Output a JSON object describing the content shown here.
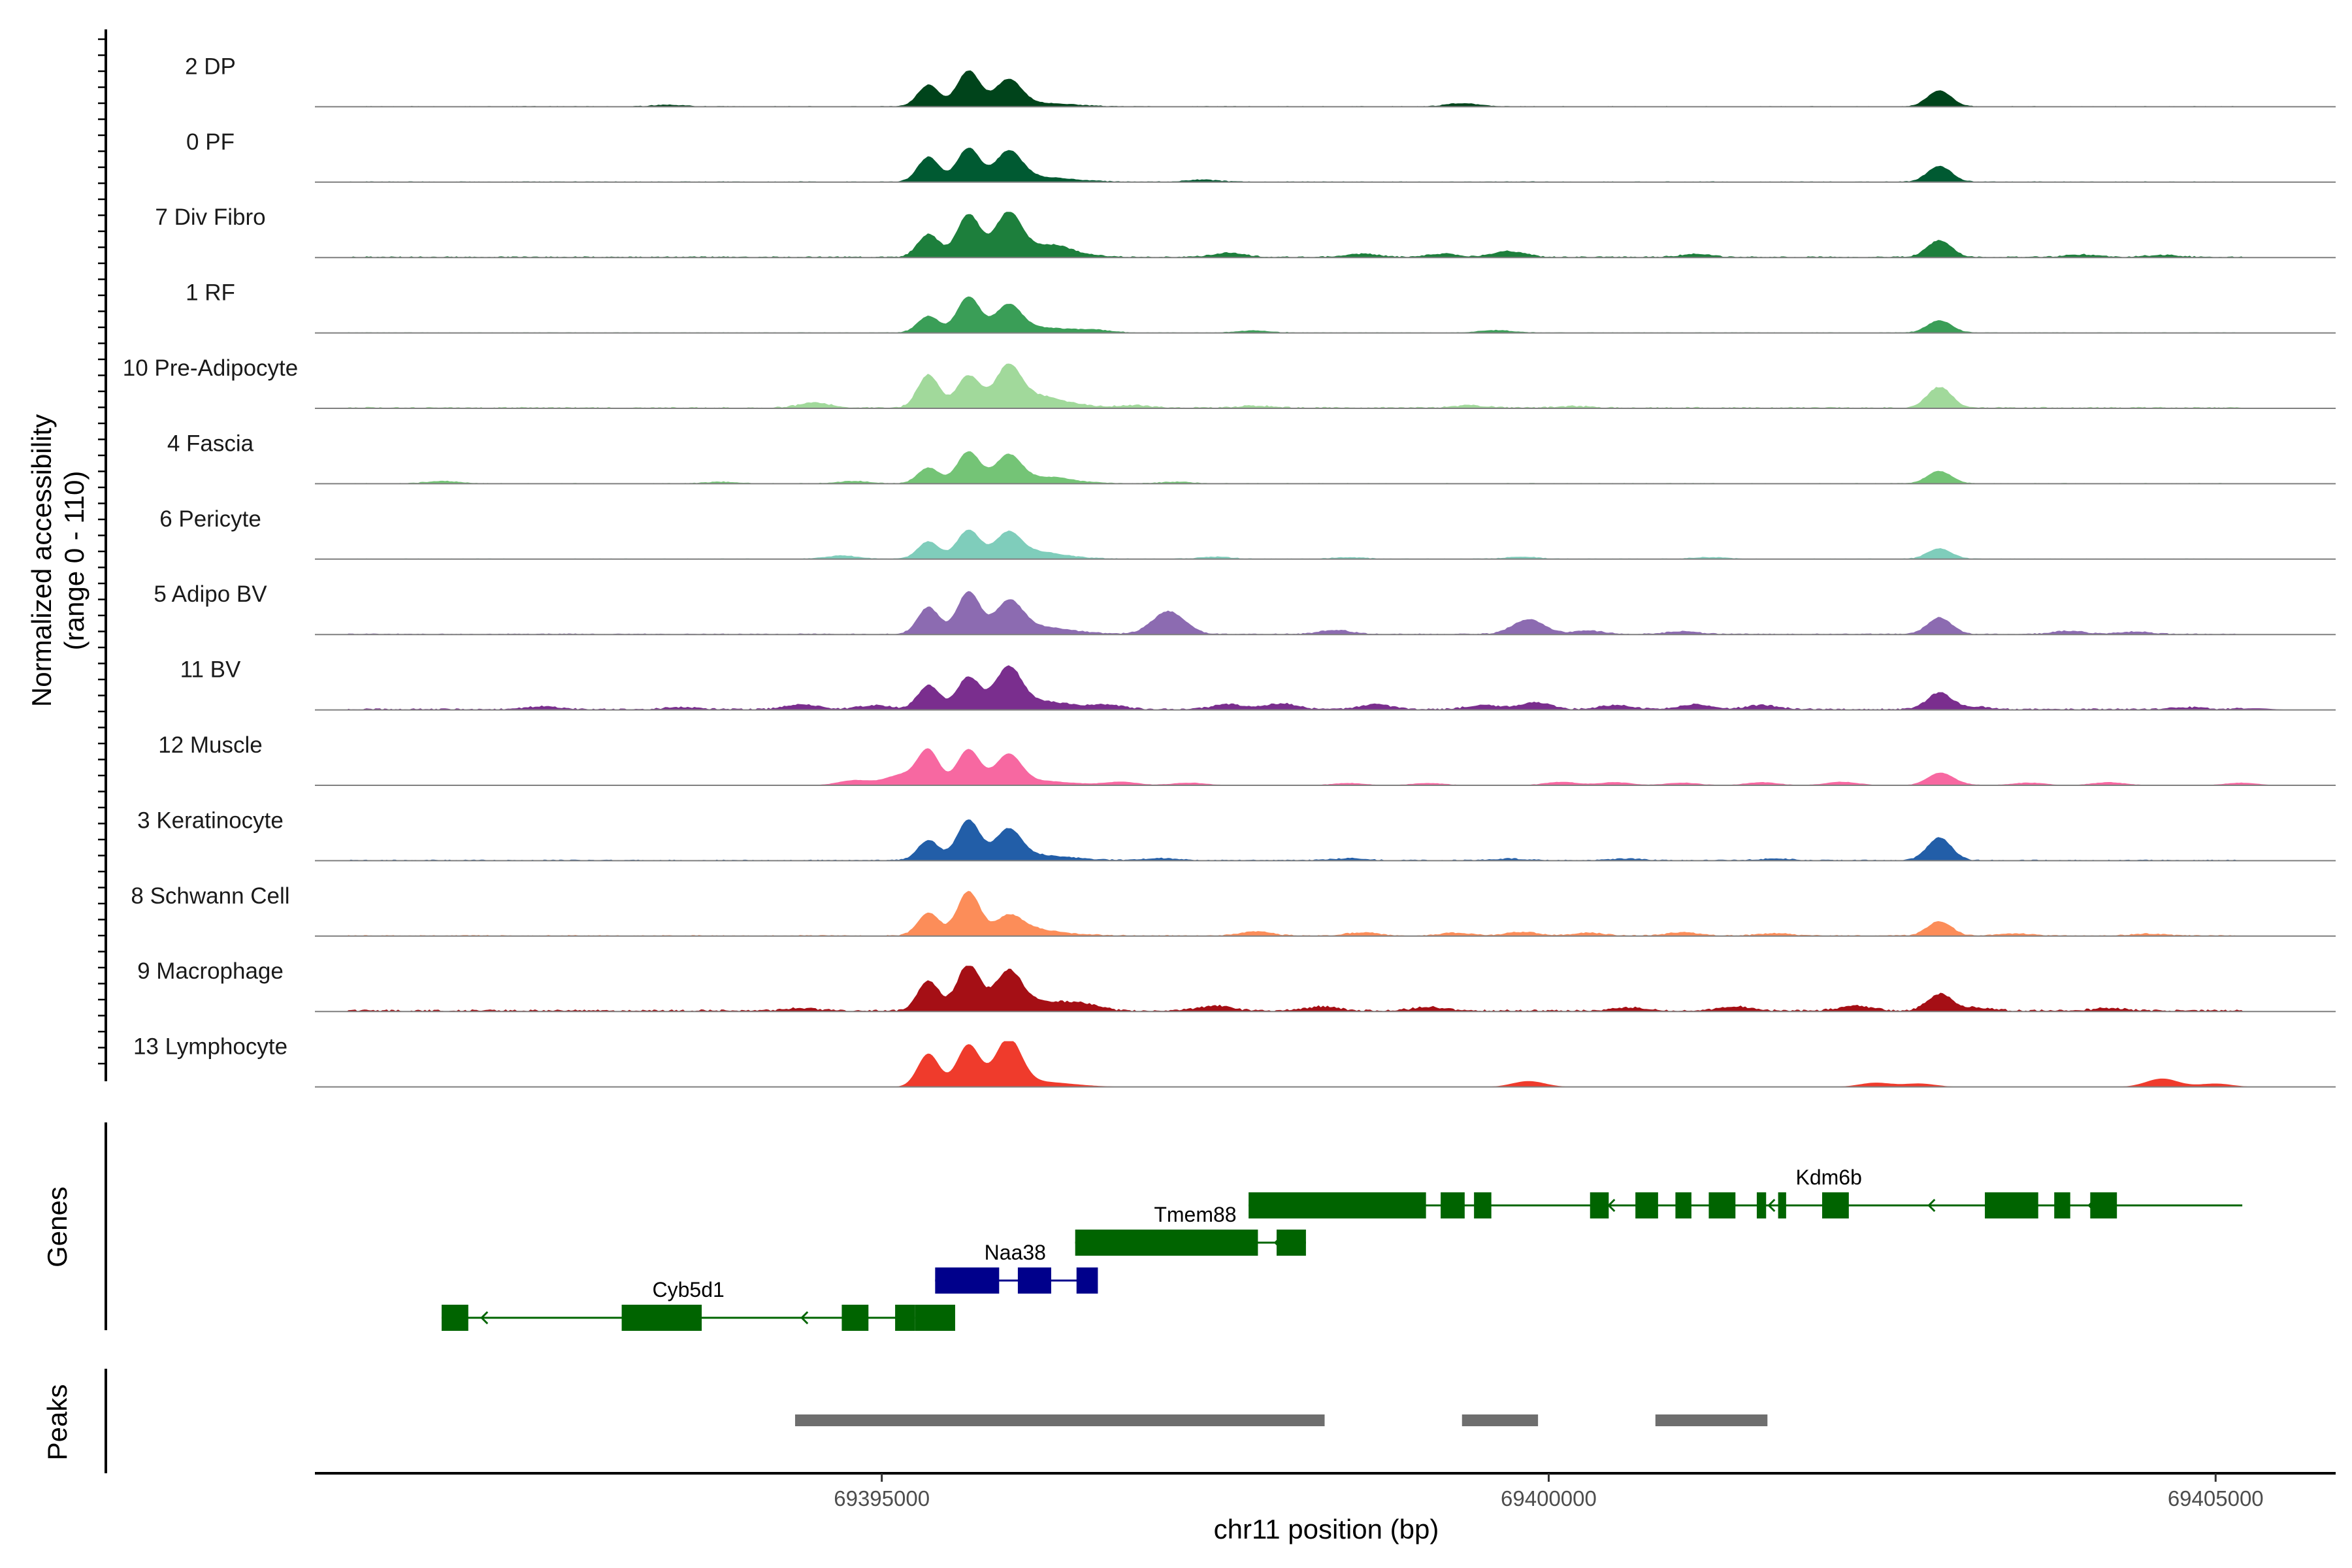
{
  "chart_data": {
    "type": "coverage-track",
    "title": "",
    "ylabel_line1": "Normalized accessibility",
    "ylabel_line2": "(range 0 - 110)",
    "y_range": [
      0,
      110
    ],
    "xlabel": "chr11 position (bp)",
    "x_range": [
      69390750,
      69405900
    ],
    "x_ticks": [
      69395000,
      69400000,
      69405000
    ],
    "x_tick_labels": [
      "69395000",
      "69400000",
      "69405000"
    ],
    "genes_label": "Genes",
    "peaks_label": "Peaks",
    "peak_positions": [
      {
        "start": 69394900,
        "end": 69396850,
        "peak_a": 69395350,
        "peak_b": 69395650,
        "peak_c": 69395950
      },
      {
        "start": 69402600,
        "end": 69403000,
        "summit": 69402930
      }
    ],
    "tracks": [
      {
        "name": "2 DP",
        "color": "#00441b",
        "p1": 52,
        "p2": 85,
        "p3": 60,
        "k": 38,
        "spread": 0.35,
        "noise": 0.1,
        "sat": [
          [
            69399350,
            8
          ],
          [
            69393400,
            4
          ]
        ]
      },
      {
        "name": "0 PF",
        "color": "#005a32",
        "p1": 60,
        "p2": 80,
        "p3": 62,
        "k": 38,
        "spread": 0.45,
        "noise": 0.12,
        "sat": [
          [
            69396000,
            6
          ],
          [
            69397400,
            5
          ]
        ]
      },
      {
        "name": "7 Div Fibro",
        "color": "#1d7f3c",
        "p1": 55,
        "p2": 100,
        "p3": 95,
        "k": 40,
        "spread": 0.6,
        "noise": 0.18,
        "sat": [
          [
            69396300,
            12
          ],
          [
            69397600,
            10
          ],
          [
            69398600,
            8
          ],
          [
            69399200,
            8
          ],
          [
            69399700,
            14
          ],
          [
            69401100,
            7
          ],
          [
            69404000,
            6
          ],
          [
            69404600,
            5
          ]
        ]
      },
      {
        "name": "1 RF",
        "color": "#3a9e57",
        "p1": 40,
        "p2": 85,
        "p3": 60,
        "k": 30,
        "spread": 0.5,
        "noise": 0.1,
        "sat": [
          [
            69396600,
            5
          ],
          [
            69397800,
            5
          ],
          [
            69399600,
            6
          ]
        ]
      },
      {
        "name": "10 Pre-Adipocyte",
        "color": "#a1d99b",
        "p1": 80,
        "p2": 75,
        "p3": 90,
        "k": 50,
        "spread": 0.7,
        "noise": 0.2,
        "sat": [
          [
            69394500,
            12
          ],
          [
            69396200,
            8
          ],
          [
            69396900,
            6
          ],
          [
            69397800,
            5
          ],
          [
            69399400,
            6
          ],
          [
            69400200,
            4
          ]
        ]
      },
      {
        "name": "4 Fascia",
        "color": "#74c476",
        "p1": 38,
        "p2": 75,
        "p3": 62,
        "k": 30,
        "spread": 0.5,
        "noise": 0.1,
        "sat": [
          [
            69391700,
            6
          ],
          [
            69393800,
            4
          ],
          [
            69394800,
            6
          ],
          [
            69396300,
            5
          ],
          [
            69397200,
            4
          ]
        ]
      },
      {
        "name": "6 Pericyte",
        "color": "#7fcdbb",
        "p1": 42,
        "p2": 68,
        "p3": 58,
        "k": 25,
        "spread": 0.5,
        "noise": 0.1,
        "sat": [
          [
            69394700,
            8
          ],
          [
            69396200,
            6
          ],
          [
            69397500,
            5
          ],
          [
            69398500,
            4
          ],
          [
            69399800,
            5
          ],
          [
            69401200,
            4
          ]
        ]
      },
      {
        "name": "5 Adipo BV",
        "color": "#8c6bb1",
        "p1": 65,
        "p2": 100,
        "p3": 60,
        "k": 40,
        "spread": 0.6,
        "noise": 0.15,
        "sat": [
          [
            69397150,
            55
          ],
          [
            69399850,
            35
          ],
          [
            69396000,
            12
          ],
          [
            69398400,
            10
          ],
          [
            69400300,
            8
          ],
          [
            69401000,
            7
          ],
          [
            69403900,
            8
          ],
          [
            69404400,
            6
          ]
        ]
      },
      {
        "name": "11 BV",
        "color": "#7a2e8e",
        "p1": 58,
        "p2": 75,
        "p3": 90,
        "k": 40,
        "spread": 0.7,
        "noise": 0.22,
        "sat": [
          [
            69392450,
            7
          ],
          [
            69393500,
            5
          ],
          [
            69394400,
            12
          ],
          [
            69394950,
            10
          ],
          [
            69396700,
            10
          ],
          [
            69397600,
            12
          ],
          [
            69398000,
            14
          ],
          [
            69398700,
            12
          ],
          [
            69399500,
            10
          ],
          [
            69399900,
            16
          ],
          [
            69400500,
            10
          ],
          [
            69401100,
            12
          ],
          [
            69401600,
            10
          ],
          [
            69403200,
            6
          ],
          [
            69404800,
            5
          ],
          [
            69405300,
            4
          ]
        ]
      },
      {
        "name": "12 Muscle",
        "color": "#f768a1",
        "p1": 82,
        "p2": 85,
        "p3": 68,
        "k": 25,
        "spread": 0.4,
        "noise": 0.05,
        "sat": [
          [
            69394800,
            12
          ],
          [
            69395150,
            25
          ],
          [
            69396800,
            8
          ],
          [
            69397300,
            6
          ],
          [
            69398500,
            5
          ],
          [
            69399100,
            5
          ],
          [
            69400100,
            8
          ],
          [
            69400500,
            7
          ],
          [
            69401000,
            6
          ],
          [
            69401600,
            7
          ],
          [
            69402200,
            8
          ],
          [
            69403000,
            6
          ],
          [
            69403600,
            6
          ],
          [
            69404200,
            7
          ],
          [
            69405200,
            6
          ]
        ]
      },
      {
        "name": "3 Keratinocyte",
        "color": "#225ea8",
        "p1": 48,
        "p2": 95,
        "p3": 68,
        "k": 55,
        "spread": 0.45,
        "noise": 0.15,
        "sat": [
          [
            69397100,
            5
          ],
          [
            69398500,
            5
          ],
          [
            69399700,
            4
          ],
          [
            69400600,
            4
          ],
          [
            69401700,
            4
          ]
        ]
      },
      {
        "name": "8 Schwann Cell",
        "color": "#fc8d59",
        "p1": 55,
        "p2": 105,
        "p3": 40,
        "k": 35,
        "spread": 0.4,
        "noise": 0.15,
        "sat": [
          [
            69396100,
            8
          ],
          [
            69397800,
            10
          ],
          [
            69398600,
            8
          ],
          [
            69399300,
            7
          ],
          [
            69399800,
            9
          ],
          [
            69400300,
            7
          ],
          [
            69401000,
            8
          ],
          [
            69401700,
            6
          ],
          [
            69403500,
            5
          ],
          [
            69404500,
            5
          ]
        ]
      },
      {
        "name": "9 Macrophage",
        "color": "#a50f15",
        "p1": 72,
        "p2": 110,
        "p3": 82,
        "k": 40,
        "spread": 0.7,
        "noise": 0.28,
        "sat": [
          [
            69394400,
            6
          ],
          [
            69396500,
            10
          ],
          [
            69397500,
            12
          ],
          [
            69398300,
            10
          ],
          [
            69399100,
            9
          ],
          [
            69400600,
            8
          ],
          [
            69401400,
            10
          ],
          [
            69402300,
            12
          ],
          [
            69403200,
            8
          ],
          [
            69404200,
            6
          ]
        ]
      },
      {
        "name": "13 Lymphocyte",
        "color": "#ef3b2c",
        "p1": 80,
        "p2": 100,
        "p3": 110,
        "k": 0,
        "spread": 0.35,
        "noise": 0.0,
        "sat": [
          [
            69399850,
            14
          ],
          [
            69402450,
            10
          ],
          [
            69402780,
            8
          ],
          [
            69404600,
            20
          ],
          [
            69405000,
            8
          ]
        ]
      }
    ],
    "genes": [
      {
        "name": "Cyb5d1",
        "strand": "-",
        "color": "#006400",
        "start": 69391700,
        "end": 69395250,
        "exons": [
          [
            69391700,
            69391900
          ],
          [
            69393050,
            69393650
          ],
          [
            69394700,
            69394900
          ],
          [
            69395100,
            69395250
          ],
          [
            69395250,
            69395550
          ]
        ]
      },
      {
        "name": "Naa38",
        "strand": "+",
        "color": "#00008b",
        "start": 69395400,
        "end": 69396600,
        "exons": [
          [
            69395400,
            69395880
          ],
          [
            69396020,
            69396270
          ],
          [
            69396460,
            69396620
          ]
        ]
      },
      {
        "name": "Tmem88",
        "strand": "-",
        "color": "#006400",
        "start": 69396450,
        "end": 69398180,
        "exons": [
          [
            69396450,
            69397820
          ],
          [
            69397960,
            69398180
          ]
        ]
      },
      {
        "name": "Kdm6b",
        "strand": "-",
        "color": "#006400",
        "start": 69397750,
        "end": 69405200,
        "exons": [
          [
            69397750,
            69399080
          ],
          [
            69399190,
            69399370
          ],
          [
            69399440,
            69399570
          ],
          [
            69400310,
            69400450
          ],
          [
            69400650,
            69400820
          ],
          [
            69400950,
            69401070
          ],
          [
            69401200,
            69401400
          ],
          [
            69401560,
            69401630
          ],
          [
            69401720,
            69401780
          ],
          [
            69402050,
            69402250
          ],
          [
            69403270,
            69403670
          ],
          [
            69403790,
            69403910
          ],
          [
            69404060,
            69404260
          ]
        ]
      }
    ],
    "peaks": [
      {
        "start": 69394350,
        "end": 69398320
      },
      {
        "start": 69399350,
        "end": 69399920
      },
      {
        "start": 69400800,
        "end": 69401640
      }
    ]
  }
}
